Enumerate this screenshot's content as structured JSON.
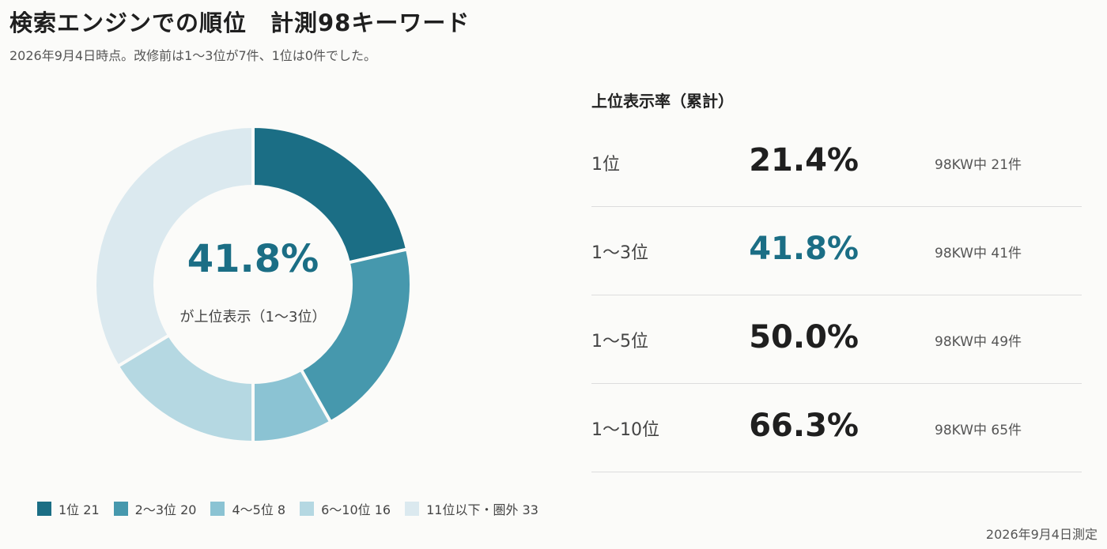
{
  "header": {
    "title": "検索エンジンでの順位　計測98キーワード",
    "subtitle": "2026年9月4日時点。改修前は1〜3位が7件、1位は0件でした。"
  },
  "chart_data": {
    "type": "pie",
    "style": "donut",
    "categories": [
      "1位",
      "2〜3位",
      "4〜5位",
      "6〜10位",
      "11位以下・圏外"
    ],
    "values": [
      21,
      20,
      8,
      16,
      33
    ],
    "colors": [
      "#1b6e85",
      "#4698ad",
      "#8bc3d3",
      "#b5d8e2",
      "#dbe9ef"
    ],
    "legend_labels": [
      "1位 21",
      "2〜3位 20",
      "4〜5位 8",
      "6〜10位 16",
      "11位以下・圏外 33"
    ],
    "legend_position": "bottom",
    "center_value": "41.8%",
    "center_label": "が上位表示（1〜3位）"
  },
  "rates": {
    "title": "上位表示率（累計）",
    "rows": [
      {
        "label": "1位",
        "value": "21.4%",
        "count": "98KW中 21件",
        "highlight": false
      },
      {
        "label": "1〜3位",
        "value": "41.8%",
        "count": "98KW中 41件",
        "highlight": true
      },
      {
        "label": "1〜5位",
        "value": "50.0%",
        "count": "98KW中 49件",
        "highlight": false
      },
      {
        "label": "1〜10位",
        "value": "66.3%",
        "count": "98KW中 65件",
        "highlight": false
      }
    ]
  },
  "footer": {
    "note": "2026年9月4日測定"
  },
  "colors": {
    "accent": "#1b6e85",
    "background": "#fbfbf9"
  }
}
